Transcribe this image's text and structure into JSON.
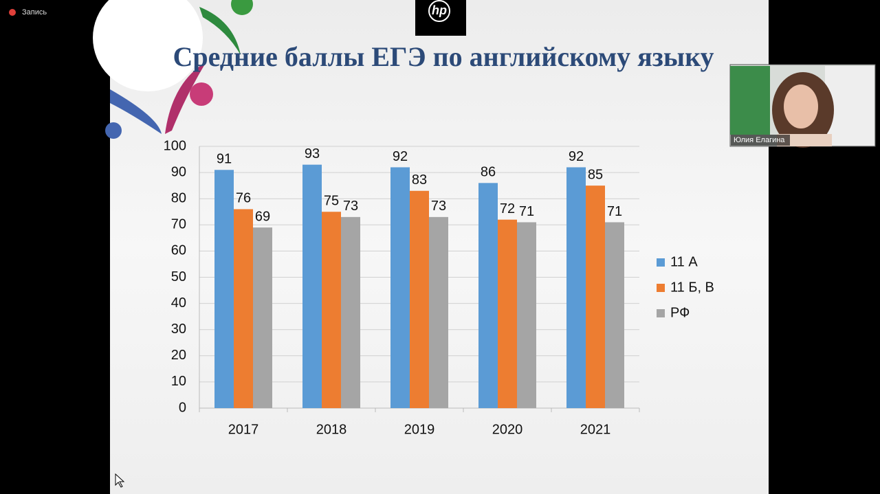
{
  "recording": {
    "label": "Запись"
  },
  "logo": "hp",
  "participant": {
    "name": "Юлия Елагина"
  },
  "chart_data": {
    "type": "bar",
    "title": "Средние баллы ЕГЭ по английскому языку",
    "categories": [
      "2017",
      "2018",
      "2019",
      "2020",
      "2021"
    ],
    "series": [
      {
        "name": "11 А",
        "color": "#5b9bd5",
        "values": [
          91,
          93,
          92,
          86,
          92
        ]
      },
      {
        "name": "11 Б, В",
        "color": "#ed7d31",
        "values": [
          76,
          75,
          83,
          72,
          85
        ]
      },
      {
        "name": "РФ",
        "color": "#a5a5a5",
        "values": [
          69,
          73,
          73,
          71,
          71
        ]
      }
    ],
    "ylim": [
      0,
      100
    ],
    "yticks": [
      0,
      10,
      20,
      30,
      40,
      50,
      60,
      70,
      80,
      90,
      100
    ],
    "grid": true,
    "legend": "right"
  }
}
